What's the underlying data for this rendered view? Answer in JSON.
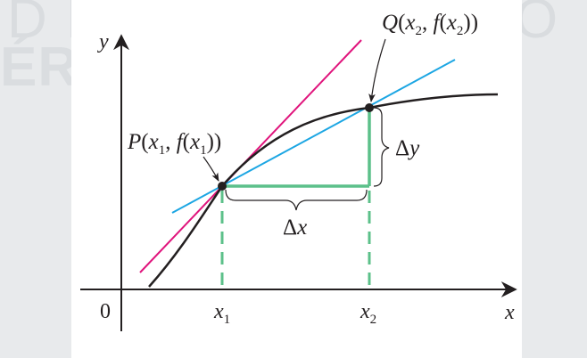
{
  "watermark": {
    "line1": "D DE DESARROLLO",
    "line2": "ÉRICA LATINA"
  },
  "axes": {
    "x_label": "x",
    "y_label": "y",
    "origin_label": "0"
  },
  "ticks": {
    "x1_base": "x",
    "x1_sub": "1",
    "x2_base": "x",
    "x2_sub": "2"
  },
  "points": {
    "p_letter": "P",
    "q_letter": "Q"
  },
  "deltas": {
    "dx_symbol": "Δ",
    "dx_var": "x",
    "dy_symbol": "Δ",
    "dy_var": "y"
  },
  "colors": {
    "curve": "#231f20",
    "tangent": "#e0147c",
    "secant": "#1ca6e3",
    "increments": "#5cc08a",
    "axes": "#231f20"
  }
}
